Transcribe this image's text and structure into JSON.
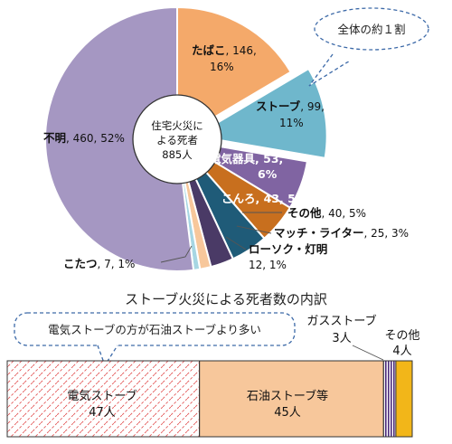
{
  "chart_data": [
    {
      "type": "pie",
      "center_label": [
        "住宅火災に",
        "よる死者",
        "885人"
      ],
      "slices": [
        {
          "name": "たばこ",
          "value": 146,
          "percent": "16%",
          "color": "#F4A96A"
        },
        {
          "name": "ストーブ",
          "value": 99,
          "percent": "11%",
          "color": "#6FB7CC",
          "exploded": true
        },
        {
          "name": "電気器具",
          "value": 53,
          "percent": "6%",
          "color": "#8064A2"
        },
        {
          "name": "こんろ",
          "value": 43,
          "percent": "5%",
          "color": "#C86F1E"
        },
        {
          "name": "その他",
          "value": 40,
          "percent": "5%",
          "color": "#1F5B78"
        },
        {
          "name": "マッチ・ライター",
          "value": 25,
          "percent": "3%",
          "color": "#4A3A66"
        },
        {
          "name": "ローソク・灯明",
          "value": 12,
          "percent": "1%",
          "color": "#F7C79B"
        },
        {
          "name": "こたつ",
          "value": 7,
          "percent": "1%",
          "color": "#A6D6E3"
        },
        {
          "name": "不明",
          "value": 460,
          "percent": "52%",
          "color": "#A597C2"
        }
      ],
      "callout": "全体の約１割"
    },
    {
      "type": "bar",
      "title": "ストーブ火災による死者数の内訳",
      "callout": "電気ストーブの方が石油ストーブより多い",
      "segments": [
        {
          "name": "電気ストーブ",
          "value_label": "47人",
          "value": 47,
          "color": "#FFFFFF",
          "pattern": "hatch-red"
        },
        {
          "name": "石油ストーブ等",
          "value_label": "45人",
          "value": 45,
          "color": "#F7C79B"
        },
        {
          "name": "ガスストーブ",
          "value_label": "3人",
          "value": 3,
          "color": "#4B2C7A",
          "pattern": "stripes"
        },
        {
          "name": "その他",
          "value_label": "4人",
          "value": 4,
          "color": "#F2B619"
        }
      ]
    }
  ]
}
